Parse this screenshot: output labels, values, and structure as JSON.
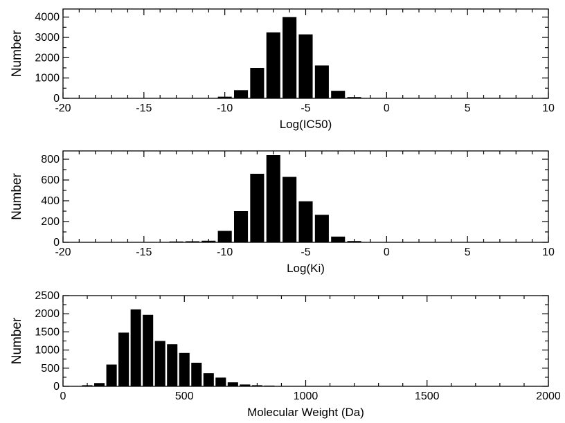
{
  "chart_data": [
    {
      "type": "bar",
      "xlabel": "Log(IC50)",
      "ylabel": "Number",
      "xlim": [
        -20,
        10
      ],
      "ylim": [
        0,
        4400
      ],
      "xticks": [
        -20,
        -15,
        -10,
        -5,
        0,
        5,
        10
      ],
      "yticks": [
        0,
        1000,
        2000,
        3000,
        4000
      ],
      "bin_width": 1,
      "grid": false,
      "x": [
        -12,
        -11,
        -10,
        -9,
        -8,
        -7,
        -6,
        -5,
        -4,
        -3,
        -2,
        -1
      ],
      "values": [
        5,
        15,
        80,
        400,
        1500,
        3250,
        4000,
        3150,
        1620,
        370,
        60,
        10
      ]
    },
    {
      "type": "bar",
      "xlabel": "Log(Ki)",
      "ylabel": "Number",
      "xlim": [
        -20,
        10
      ],
      "ylim": [
        0,
        880
      ],
      "xticks": [
        -20,
        -15,
        -10,
        -5,
        0,
        5,
        10
      ],
      "yticks": [
        0,
        200,
        400,
        600,
        800
      ],
      "bin_width": 1,
      "grid": false,
      "x": [
        -14,
        -13,
        -12,
        -11,
        -10,
        -9,
        -8,
        -7,
        -6,
        -5,
        -4,
        -3,
        -2,
        -1
      ],
      "values": [
        3,
        8,
        10,
        15,
        110,
        300,
        660,
        840,
        630,
        395,
        265,
        55,
        12,
        3
      ]
    },
    {
      "type": "bar",
      "xlabel": "Molecular Weight (Da)",
      "ylabel": "Number",
      "xlim": [
        0,
        2000
      ],
      "ylim": [
        0,
        2500
      ],
      "xticks": [
        0,
        500,
        1000,
        1500,
        2000
      ],
      "yticks": [
        0,
        500,
        1000,
        1500,
        2000,
        2500
      ],
      "bin_width": 50,
      "grid": false,
      "x": [
        50,
        100,
        150,
        200,
        250,
        300,
        350,
        400,
        450,
        500,
        550,
        600,
        650,
        700,
        750,
        800,
        850,
        900,
        950,
        1000,
        1050,
        1100,
        1150,
        1200
      ],
      "values": [
        5,
        30,
        90,
        600,
        1480,
        2120,
        1970,
        1250,
        1160,
        920,
        650,
        360,
        240,
        110,
        50,
        30,
        20,
        10,
        5,
        5,
        3,
        2,
        1,
        1
      ]
    }
  ]
}
